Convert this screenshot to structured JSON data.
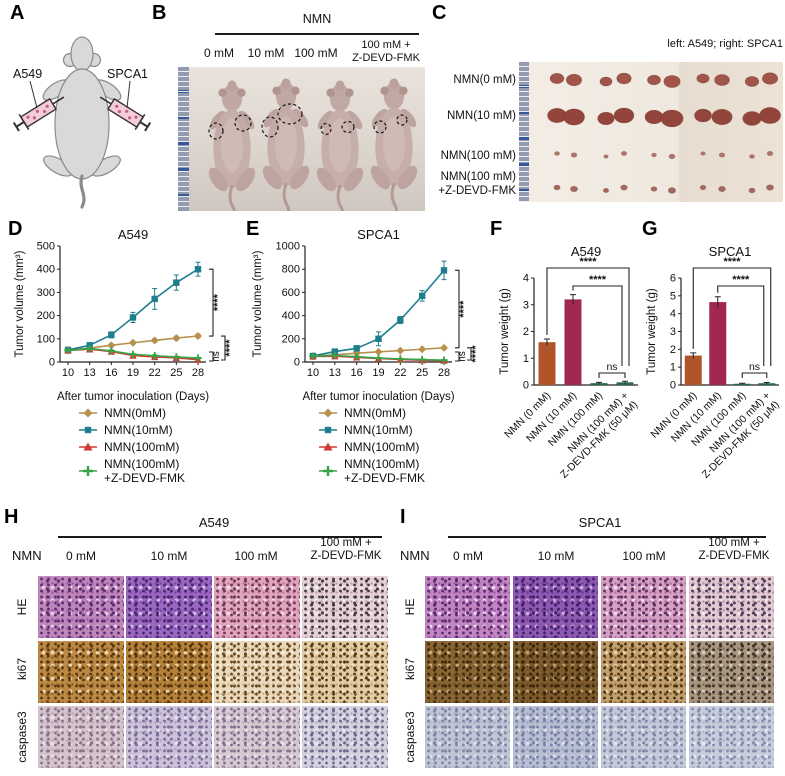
{
  "figure": {
    "panel_labels": {
      "A": "A",
      "B": "B",
      "C": "C",
      "D": "D",
      "E": "E",
      "F": "F",
      "G": "G",
      "H": "H",
      "I": "I"
    },
    "panelA": {
      "left_syringe_label": "A549",
      "right_syringe_label": "SPCA1"
    },
    "panelB": {
      "group_title": "NMN",
      "doses": [
        "0 mM",
        "10 mM",
        "100 mM",
        "100 mM +\nZ-DEVD-FMK"
      ]
    },
    "panelC": {
      "caption": "left: A549; right: SPCA1",
      "row_labels": [
        "NMN(0 mM)",
        "NMN(10 mM)",
        "NMN(100 mM)",
        "NMN(100 mM)\n+Z-DEVD-FMK"
      ]
    },
    "panelH": {
      "title": "A549",
      "group_label": "NMN",
      "col_labels": [
        "0 mM",
        "10 mM",
        "100 mM",
        "100 mM +\nZ-DEVD-FMK"
      ],
      "row_labels": [
        "HE",
        "ki67",
        "caspase3"
      ]
    },
    "panelI": {
      "title": "SPCA1",
      "group_label": "NMN",
      "col_labels": [
        "0 mM",
        "10 mM",
        "100 mM",
        "100 mM +\nZ-DEVD-FMK"
      ],
      "row_labels": [
        "HE",
        "ki67",
        "caspase3"
      ]
    }
  },
  "legend": {
    "items": [
      {
        "label": "NMN(0mM)",
        "color": "#b5914d",
        "marker": "diamond"
      },
      {
        "label": "NMN(10mM)",
        "color": "#1e7e8e",
        "marker": "square"
      },
      {
        "label": "NMN(100mM)",
        "color": "#cf3a32",
        "marker": "triangle"
      },
      {
        "label": "NMN(100mM)\n+Z-DEVD-FMK",
        "color": "#3aa348",
        "marker": "plus"
      }
    ]
  },
  "chart_data": [
    {
      "id": "D",
      "type": "line",
      "title": "A549",
      "xlabel": "After tumor inoculation (Days)",
      "ylabel": "Tumor volume (mm³)",
      "x": [
        10,
        13,
        16,
        19,
        22,
        25,
        28
      ],
      "ylim": [
        0,
        500
      ],
      "yticks": [
        0,
        100,
        200,
        300,
        400,
        500
      ],
      "series": [
        {
          "name": "NMN(0mM)",
          "color": "#b5914d",
          "marker": "diamond",
          "values": [
            52,
            60,
            72,
            83,
            93,
            103,
            112
          ],
          "errors": [
            5,
            5,
            6,
            6,
            7,
            8,
            8
          ]
        },
        {
          "name": "NMN(10mM)",
          "color": "#1e7e8e",
          "marker": "square",
          "values": [
            52,
            72,
            117,
            192,
            272,
            342,
            400
          ],
          "errors": [
            6,
            9,
            13,
            22,
            45,
            33,
            30
          ]
        },
        {
          "name": "NMN(100mM)",
          "color": "#cf3a32",
          "marker": "triangle",
          "values": [
            50,
            55,
            45,
            28,
            22,
            18,
            10
          ],
          "errors": [
            5,
            5,
            5,
            4,
            4,
            3,
            3
          ]
        },
        {
          "name": "NMN(100mM)+Z-DEVD-FMK",
          "color": "#3aa348",
          "marker": "plus",
          "values": [
            50,
            58,
            48,
            33,
            27,
            22,
            17
          ],
          "errors": [
            5,
            5,
            5,
            4,
            4,
            3,
            3
          ]
        }
      ],
      "sig": [
        "****",
        "****",
        "ns"
      ],
      "legend_position": "bottom",
      "grid": false
    },
    {
      "id": "E",
      "type": "line",
      "title": "SPCA1",
      "xlabel": "After tumor inoculation (Days)",
      "ylabel": "Tumor volume (mm³)",
      "x": [
        10,
        13,
        16,
        19,
        22,
        25,
        28
      ],
      "ylim": [
        0,
        1000
      ],
      "yticks": [
        0,
        200,
        400,
        600,
        800,
        1000
      ],
      "series": [
        {
          "name": "NMN(0mM)",
          "color": "#b5914d",
          "marker": "diamond",
          "values": [
            50,
            62,
            76,
            88,
            98,
            110,
            122
          ],
          "errors": [
            6,
            7,
            8,
            9,
            9,
            10,
            11
          ]
        },
        {
          "name": "NMN(10mM)",
          "color": "#1e7e8e",
          "marker": "square",
          "values": [
            52,
            90,
            118,
            200,
            362,
            570,
            790
          ],
          "errors": [
            8,
            12,
            15,
            60,
            30,
            45,
            80
          ]
        },
        {
          "name": "NMN(100mM)",
          "color": "#cf3a32",
          "marker": "triangle",
          "values": [
            48,
            50,
            40,
            30,
            22,
            16,
            12
          ],
          "errors": [
            5,
            5,
            5,
            4,
            4,
            3,
            3
          ]
        },
        {
          "name": "NMN(100mM)+Z-DEVD-FMK",
          "color": "#3aa348",
          "marker": "plus",
          "values": [
            50,
            56,
            46,
            34,
            27,
            21,
            16
          ],
          "errors": [
            5,
            5,
            5,
            4,
            4,
            3,
            3
          ]
        }
      ],
      "sig": [
        "****",
        "****",
        "ns"
      ],
      "legend_position": "bottom",
      "grid": false
    },
    {
      "id": "F",
      "type": "bar",
      "title": "A549",
      "ylabel": "Tumor weight (g)",
      "ylim": [
        0,
        4
      ],
      "yticks": [
        0,
        1,
        2,
        3,
        4
      ],
      "categories": [
        "NMN (0 mM)",
        "NMN (10 mM)",
        "NMN (100 mM)",
        "NMN (100 mM) +\nZ-DEVD-FMK (50 μM)"
      ],
      "values": [
        1.6,
        3.2,
        0.07,
        0.1
      ],
      "errors": [
        0.12,
        0.18,
        0.03,
        0.04
      ],
      "colors": [
        "#b0552a",
        "#a12950",
        "#276b46",
        "#276b46"
      ],
      "sig": [
        "****",
        "****",
        "ns"
      ],
      "grid": false
    },
    {
      "id": "G",
      "type": "bar",
      "title": "SPCA1",
      "ylabel": "Tumor weight (g)",
      "ylim": [
        0,
        6
      ],
      "yticks": [
        0,
        1,
        2,
        3,
        4,
        5,
        6
      ],
      "categories": [
        "NMN (0 mM)",
        "NMN (10 mM)",
        "NMN (100 mM)",
        "NMN (100 mM) +\nZ-DEVD-FMK (50 μM)"
      ],
      "values": [
        1.65,
        4.65,
        0.07,
        0.1
      ],
      "errors": [
        0.15,
        0.3,
        0.03,
        0.04
      ],
      "colors": [
        "#b0552a",
        "#a12950",
        "#276b46",
        "#276b46"
      ],
      "sig": [
        "****",
        "****",
        "ns"
      ],
      "grid": false
    }
  ]
}
